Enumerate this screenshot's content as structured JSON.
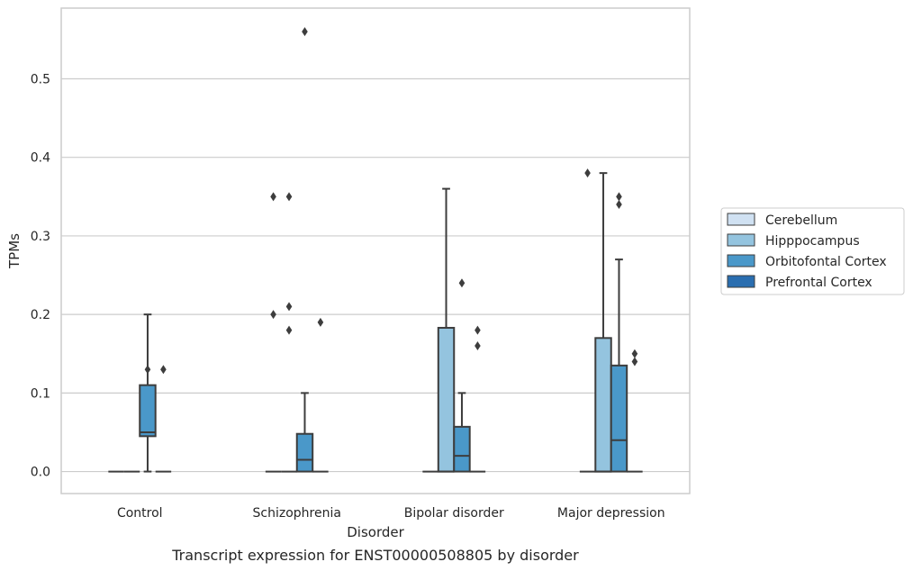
{
  "chart_data": {
    "type": "box",
    "title": "",
    "caption": "Transcript expression for ENST00000508805 by disorder",
    "xlabel": "Disorder",
    "ylabel": "TPMs",
    "ylim": [
      -0.028,
      0.59
    ],
    "yticks": [
      "0.0",
      "0.1",
      "0.2",
      "0.3",
      "0.4",
      "0.5"
    ],
    "grid": true,
    "legend_placement": "right",
    "categories": [
      "Control",
      "Schizophrenia",
      "Bipolar disorder",
      "Major depression"
    ],
    "series": [
      {
        "name": "Cerebellum",
        "color": "#d0e1f2",
        "boxes": [
          {
            "q1": 0,
            "median": 0,
            "q3": 0,
            "whisker_low": 0,
            "whisker_high": 0,
            "outliers": []
          },
          {
            "q1": 0,
            "median": 0,
            "q3": 0,
            "whisker_low": 0,
            "whisker_high": 0,
            "outliers": [
              0.35,
              0.2
            ]
          },
          {
            "q1": 0,
            "median": 0,
            "q3": 0,
            "whisker_low": 0,
            "whisker_high": 0,
            "outliers": []
          },
          {
            "q1": 0,
            "median": 0,
            "q3": 0,
            "whisker_low": 0,
            "whisker_high": 0,
            "outliers": [
              0.38
            ]
          }
        ]
      },
      {
        "name": "Hipppocampus",
        "color": "#94c4df",
        "boxes": [
          {
            "q1": 0,
            "median": 0,
            "q3": 0,
            "whisker_low": 0,
            "whisker_high": 0,
            "outliers": []
          },
          {
            "q1": 0,
            "median": 0,
            "q3": 0,
            "whisker_low": 0,
            "whisker_high": 0,
            "outliers": [
              0.35,
              0.21,
              0.18
            ]
          },
          {
            "q1": 0,
            "median": 0,
            "q3": 0.183,
            "whisker_low": 0,
            "whisker_high": 0.36,
            "outliers": []
          },
          {
            "q1": 0,
            "median": 0,
            "q3": 0.17,
            "whisker_low": 0,
            "whisker_high": 0.38,
            "outliers": []
          }
        ]
      },
      {
        "name": "Orbitofontal Cortex",
        "color": "#4a98c9",
        "boxes": [
          {
            "q1": 0.045,
            "median": 0.05,
            "q3": 0.11,
            "whisker_low": 0,
            "whisker_high": 0.2,
            "outliers": [
              0.13
            ]
          },
          {
            "q1": 0,
            "median": 0.015,
            "q3": 0.048,
            "whisker_low": 0,
            "whisker_high": 0.1,
            "outliers": [
              0.56
            ]
          },
          {
            "q1": 0,
            "median": 0.02,
            "q3": 0.057,
            "whisker_low": 0,
            "whisker_high": 0.1,
            "outliers": [
              0.24
            ]
          },
          {
            "q1": 0,
            "median": 0.04,
            "q3": 0.135,
            "whisker_low": 0,
            "whisker_high": 0.27,
            "outliers": [
              0.35,
              0.34
            ]
          }
        ]
      },
      {
        "name": "Prefrontal Cortex",
        "color": "#2a6eb0",
        "boxes": [
          {
            "q1": 0,
            "median": 0,
            "q3": 0,
            "whisker_low": 0,
            "whisker_high": 0,
            "outliers": [
              0.13
            ]
          },
          {
            "q1": 0,
            "median": 0,
            "q3": 0,
            "whisker_low": 0,
            "whisker_high": 0,
            "outliers": [
              0.19
            ]
          },
          {
            "q1": 0,
            "median": 0,
            "q3": 0,
            "whisker_low": 0,
            "whisker_high": 0,
            "outliers": [
              0.18,
              0.16
            ]
          },
          {
            "q1": 0,
            "median": 0,
            "q3": 0,
            "whisker_low": 0,
            "whisker_high": 0,
            "outliers": [
              0.15,
              0.14
            ]
          }
        ]
      }
    ]
  }
}
